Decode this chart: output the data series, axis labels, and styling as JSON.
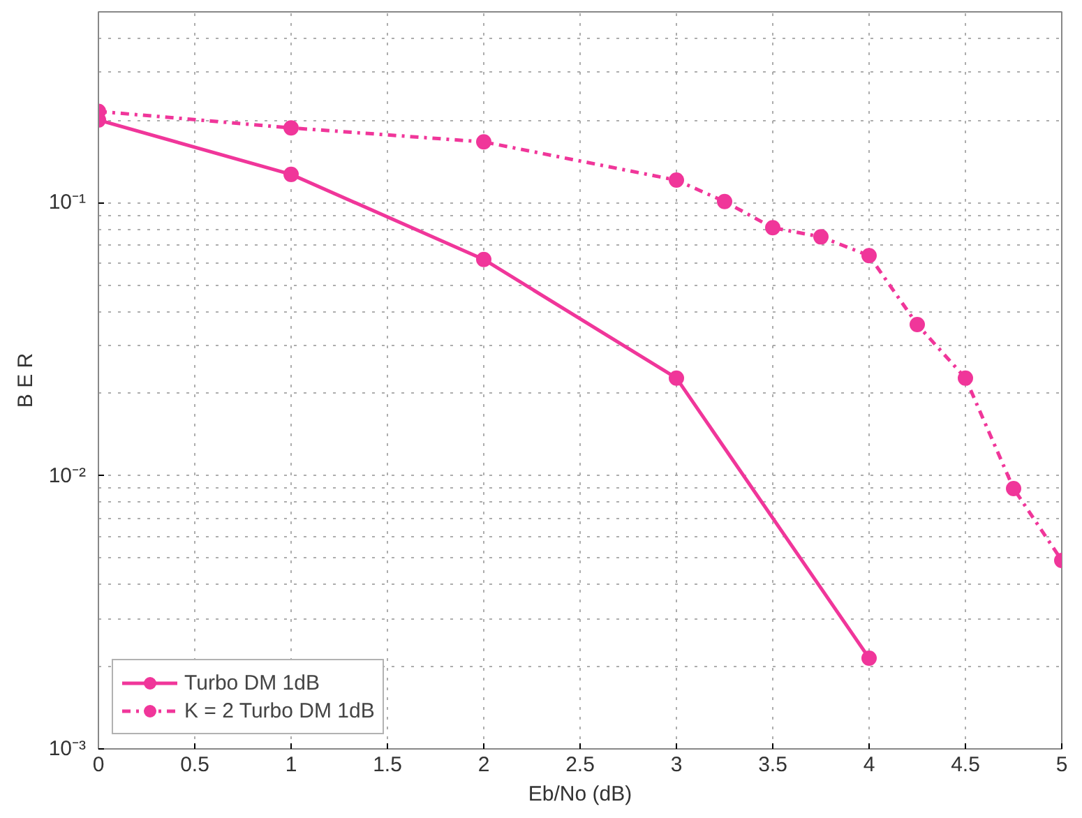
{
  "chart_data": {
    "type": "line",
    "xlabel": "Eb/No (dB)",
    "ylabel": "B E R",
    "log": "y",
    "xlim": [
      0,
      5
    ],
    "xticks": [
      0,
      0.5,
      1,
      1.5,
      2,
      2.5,
      3,
      3.5,
      4,
      4.5,
      5
    ],
    "ylim": [
      0.001,
      0.5
    ],
    "yticks": [
      {
        "value": 0.001,
        "label": "10⁻³"
      },
      {
        "value": 0.01,
        "label": "10⁻²"
      },
      {
        "value": 0.1,
        "label": "10⁻¹"
      }
    ],
    "grid": true,
    "legend": "bottom left",
    "marker": "circle",
    "series": [
      {
        "name": "Turbo DM 1dB",
        "color": "#f0369a",
        "line_style": "solid",
        "x": [
          0,
          1,
          2,
          3,
          4
        ],
        "values": [
          0.201,
          0.127,
          0.062,
          0.0228,
          0.00215
        ]
      },
      {
        "name": "K = 2 Turbo DM 1dB",
        "color": "#f0369a",
        "line_style": "dashdot",
        "x": [
          0,
          1,
          2,
          3,
          3.25,
          3.5,
          3.75,
          4,
          4.25,
          4.5,
          4.75,
          5
        ],
        "values": [
          0.216,
          0.188,
          0.167,
          0.121,
          0.101,
          0.081,
          0.075,
          0.064,
          0.0358,
          0.0228,
          0.00898,
          0.0049
        ]
      }
    ]
  }
}
